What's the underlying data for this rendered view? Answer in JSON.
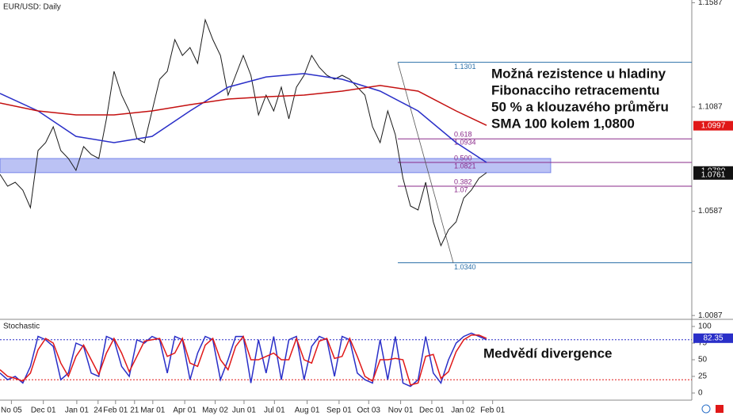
{
  "chart_data": [
    {
      "type": "line",
      "title": "EUR/USD: Daily",
      "xlim": [
        0,
        91
      ],
      "ylim": [
        1.008,
        1.16
      ],
      "xticks": [
        {
          "value": 1.5,
          "label": "No 05"
        },
        {
          "value": 5.7,
          "label": "Dec 01"
        },
        {
          "value": 10.1,
          "label": "Jan 01"
        },
        {
          "value": 12.9,
          "label": "24"
        },
        {
          "value": 15.2,
          "label": "Feb 01"
        },
        {
          "value": 17.7,
          "label": "21"
        },
        {
          "value": 20.1,
          "label": "Mar 01"
        },
        {
          "value": 24.3,
          "label": "Apr 01"
        },
        {
          "value": 28.3,
          "label": "May 02"
        },
        {
          "value": 32.1,
          "label": "Jun 01"
        },
        {
          "value": 36.1,
          "label": "Jul 01"
        },
        {
          "value": 40.4,
          "label": "Aug 01"
        },
        {
          "value": 44.6,
          "label": "Sep 01"
        },
        {
          "value": 48.5,
          "label": "Oct 03"
        },
        {
          "value": 52.7,
          "label": "Nov 01"
        },
        {
          "value": 56.8,
          "label": "Dec 01"
        },
        {
          "value": 60.9,
          "label": "Jan 02"
        },
        {
          "value": 64.8,
          "label": "Feb 01"
        }
      ],
      "yticks": [
        1.1587,
        1.1087,
        1.0587,
        1.0087
      ],
      "series": [
        {
          "color": "#1a1a1a",
          "x": [
            0,
            1,
            2,
            3,
            4,
            5,
            6,
            7,
            8,
            9,
            10,
            11,
            12,
            13,
            14,
            15,
            16,
            17,
            18,
            19,
            20,
            21,
            22,
            23,
            24,
            25,
            26,
            27,
            28,
            29,
            30,
            31,
            32,
            33,
            34,
            35,
            36,
            37,
            38,
            39,
            40,
            41,
            42,
            43,
            44,
            45,
            46,
            47,
            48,
            49,
            50,
            51,
            52,
            53,
            54,
            55,
            56,
            57,
            58,
            59,
            60,
            61,
            62,
            63,
            64
          ],
          "values": [
            1.0764,
            1.0707,
            1.0726,
            1.0688,
            1.0604,
            1.0878,
            1.0916,
            1.0992,
            1.0878,
            1.084,
            1.0783,
            1.0897,
            1.0859,
            1.084,
            1.103,
            1.1258,
            1.1144,
            1.1068,
            1.0935,
            1.0916,
            1.1068,
            1.122,
            1.1258,
            1.141,
            1.1334,
            1.1372,
            1.1296,
            1.1505,
            1.141,
            1.1334,
            1.1144,
            1.1239,
            1.1334,
            1.1239,
            1.1049,
            1.1144,
            1.1068,
            1.1182,
            1.103,
            1.1182,
            1.1239,
            1.1334,
            1.1277,
            1.1239,
            1.122,
            1.1239,
            1.122,
            1.1182,
            1.1144,
            1.0992,
            1.0916,
            1.1068,
            1.0954,
            1.0745,
            1.0612,
            1.0593,
            1.0726,
            1.0536,
            1.0422,
            1.0498,
            1.0536,
            1.065,
            1.0688,
            1.0745,
            1.0772
          ]
        },
        {
          "color": "#2a2fc8",
          "x": [
            0,
            5,
            10,
            15,
            20,
            25,
            30,
            35,
            40,
            45,
            50,
            55,
            60,
            64
          ],
          "values": [
            1.1152,
            1.1068,
            1.0946,
            1.0916,
            1.0946,
            1.1068,
            1.1182,
            1.1231,
            1.1247,
            1.122,
            1.1163,
            1.1068,
            1.0916,
            1.0821
          ]
        },
        {
          "color": "#c41010",
          "x": [
            0,
            5,
            10,
            15,
            20,
            25,
            30,
            35,
            40,
            45,
            50,
            55,
            60,
            64
          ],
          "values": [
            1.1106,
            1.1068,
            1.1049,
            1.1049,
            1.1068,
            1.1098,
            1.1125,
            1.1136,
            1.1144,
            1.1163,
            1.119,
            1.1163,
            1.1068,
            1.0999
          ]
        }
      ],
      "zone": [
        1.0772,
        1.084
      ],
      "zone_color": "#3b4fe0",
      "fib": [
        {
          "ratio": null,
          "value": 1.1301,
          "label": "1.1301"
        },
        {
          "ratio": "0.618",
          "value": 1.0934,
          "label": "1.0934"
        },
        {
          "ratio": "0.500",
          "value": 1.0821,
          "label": "1.0821"
        },
        {
          "ratio": "0.382",
          "value": 1.0707,
          "label": "1.07"
        },
        {
          "ratio": null,
          "value": 1.034,
          "label": "1.0340"
        }
      ],
      "price_tags": [
        {
          "value": 1.0997,
          "label": "1.0997",
          "color": "#e01818"
        },
        {
          "value": 1.078,
          "label": "1.0780",
          "color": "#111111"
        },
        {
          "value": 1.0761,
          "label": "1.0761",
          "color": "#111111"
        }
      ],
      "annotation_lines": [
        "Možná rezistence u hladiny",
        "Fibonacciho retracementu",
        "50 % a klouzavého průměru",
        "SMA 100 kolem 1,0800"
      ]
    },
    {
      "type": "line",
      "title": "Stochastic",
      "xlim": [
        0,
        91
      ],
      "ylim": [
        0,
        100
      ],
      "yticks": [
        0,
        25,
        50,
        75,
        100
      ],
      "x": [
        0,
        1,
        2,
        3,
        4,
        5,
        6,
        7,
        8,
        9,
        10,
        11,
        12,
        13,
        14,
        15,
        16,
        17,
        18,
        19,
        20,
        21,
        22,
        23,
        24,
        25,
        26,
        27,
        28,
        29,
        30,
        31,
        32,
        33,
        34,
        35,
        36,
        37,
        38,
        39,
        40,
        41,
        42,
        43,
        44,
        45,
        46,
        47,
        48,
        49,
        50,
        51,
        52,
        53,
        54,
        55,
        56,
        57,
        58,
        59,
        60,
        61,
        62,
        63,
        64
      ],
      "series": [
        {
          "color": "#2a2fc8",
          "values": [
            30,
            20,
            25,
            15,
            40,
            85,
            80,
            70,
            20,
            30,
            75,
            70,
            30,
            25,
            85,
            80,
            40,
            25,
            80,
            75,
            85,
            80,
            30,
            85,
            80,
            20,
            60,
            85,
            80,
            20,
            50,
            85,
            85,
            15,
            80,
            30,
            85,
            20,
            80,
            85,
            20,
            70,
            85,
            80,
            25,
            85,
            80,
            30,
            20,
            15,
            80,
            20,
            85,
            15,
            10,
            20,
            85,
            30,
            15,
            50,
            75,
            85,
            90,
            85,
            80
          ]
        },
        {
          "color": "#e01818",
          "values": [
            35,
            25,
            22,
            18,
            30,
            65,
            82,
            75,
            45,
            25,
            55,
            72,
            50,
            28,
            60,
            82,
            60,
            32,
            55,
            78,
            80,
            82,
            55,
            60,
            82,
            45,
            40,
            72,
            82,
            50,
            35,
            70,
            85,
            50,
            50,
            55,
            60,
            50,
            50,
            82,
            50,
            45,
            78,
            82,
            52,
            55,
            82,
            55,
            25,
            18,
            50,
            50,
            52,
            50,
            12,
            15,
            55,
            58,
            22,
            32,
            62,
            80,
            87,
            87,
            82
          ]
        }
      ],
      "levels": [
        {
          "value": 80,
          "color": "#2a2fc8"
        },
        {
          "value": 20,
          "color": "#e01818"
        }
      ],
      "tag": {
        "value": 82.35,
        "label": "82.35",
        "color": "#2a2fc8"
      },
      "annotation": "Medvědí divergence"
    }
  ]
}
